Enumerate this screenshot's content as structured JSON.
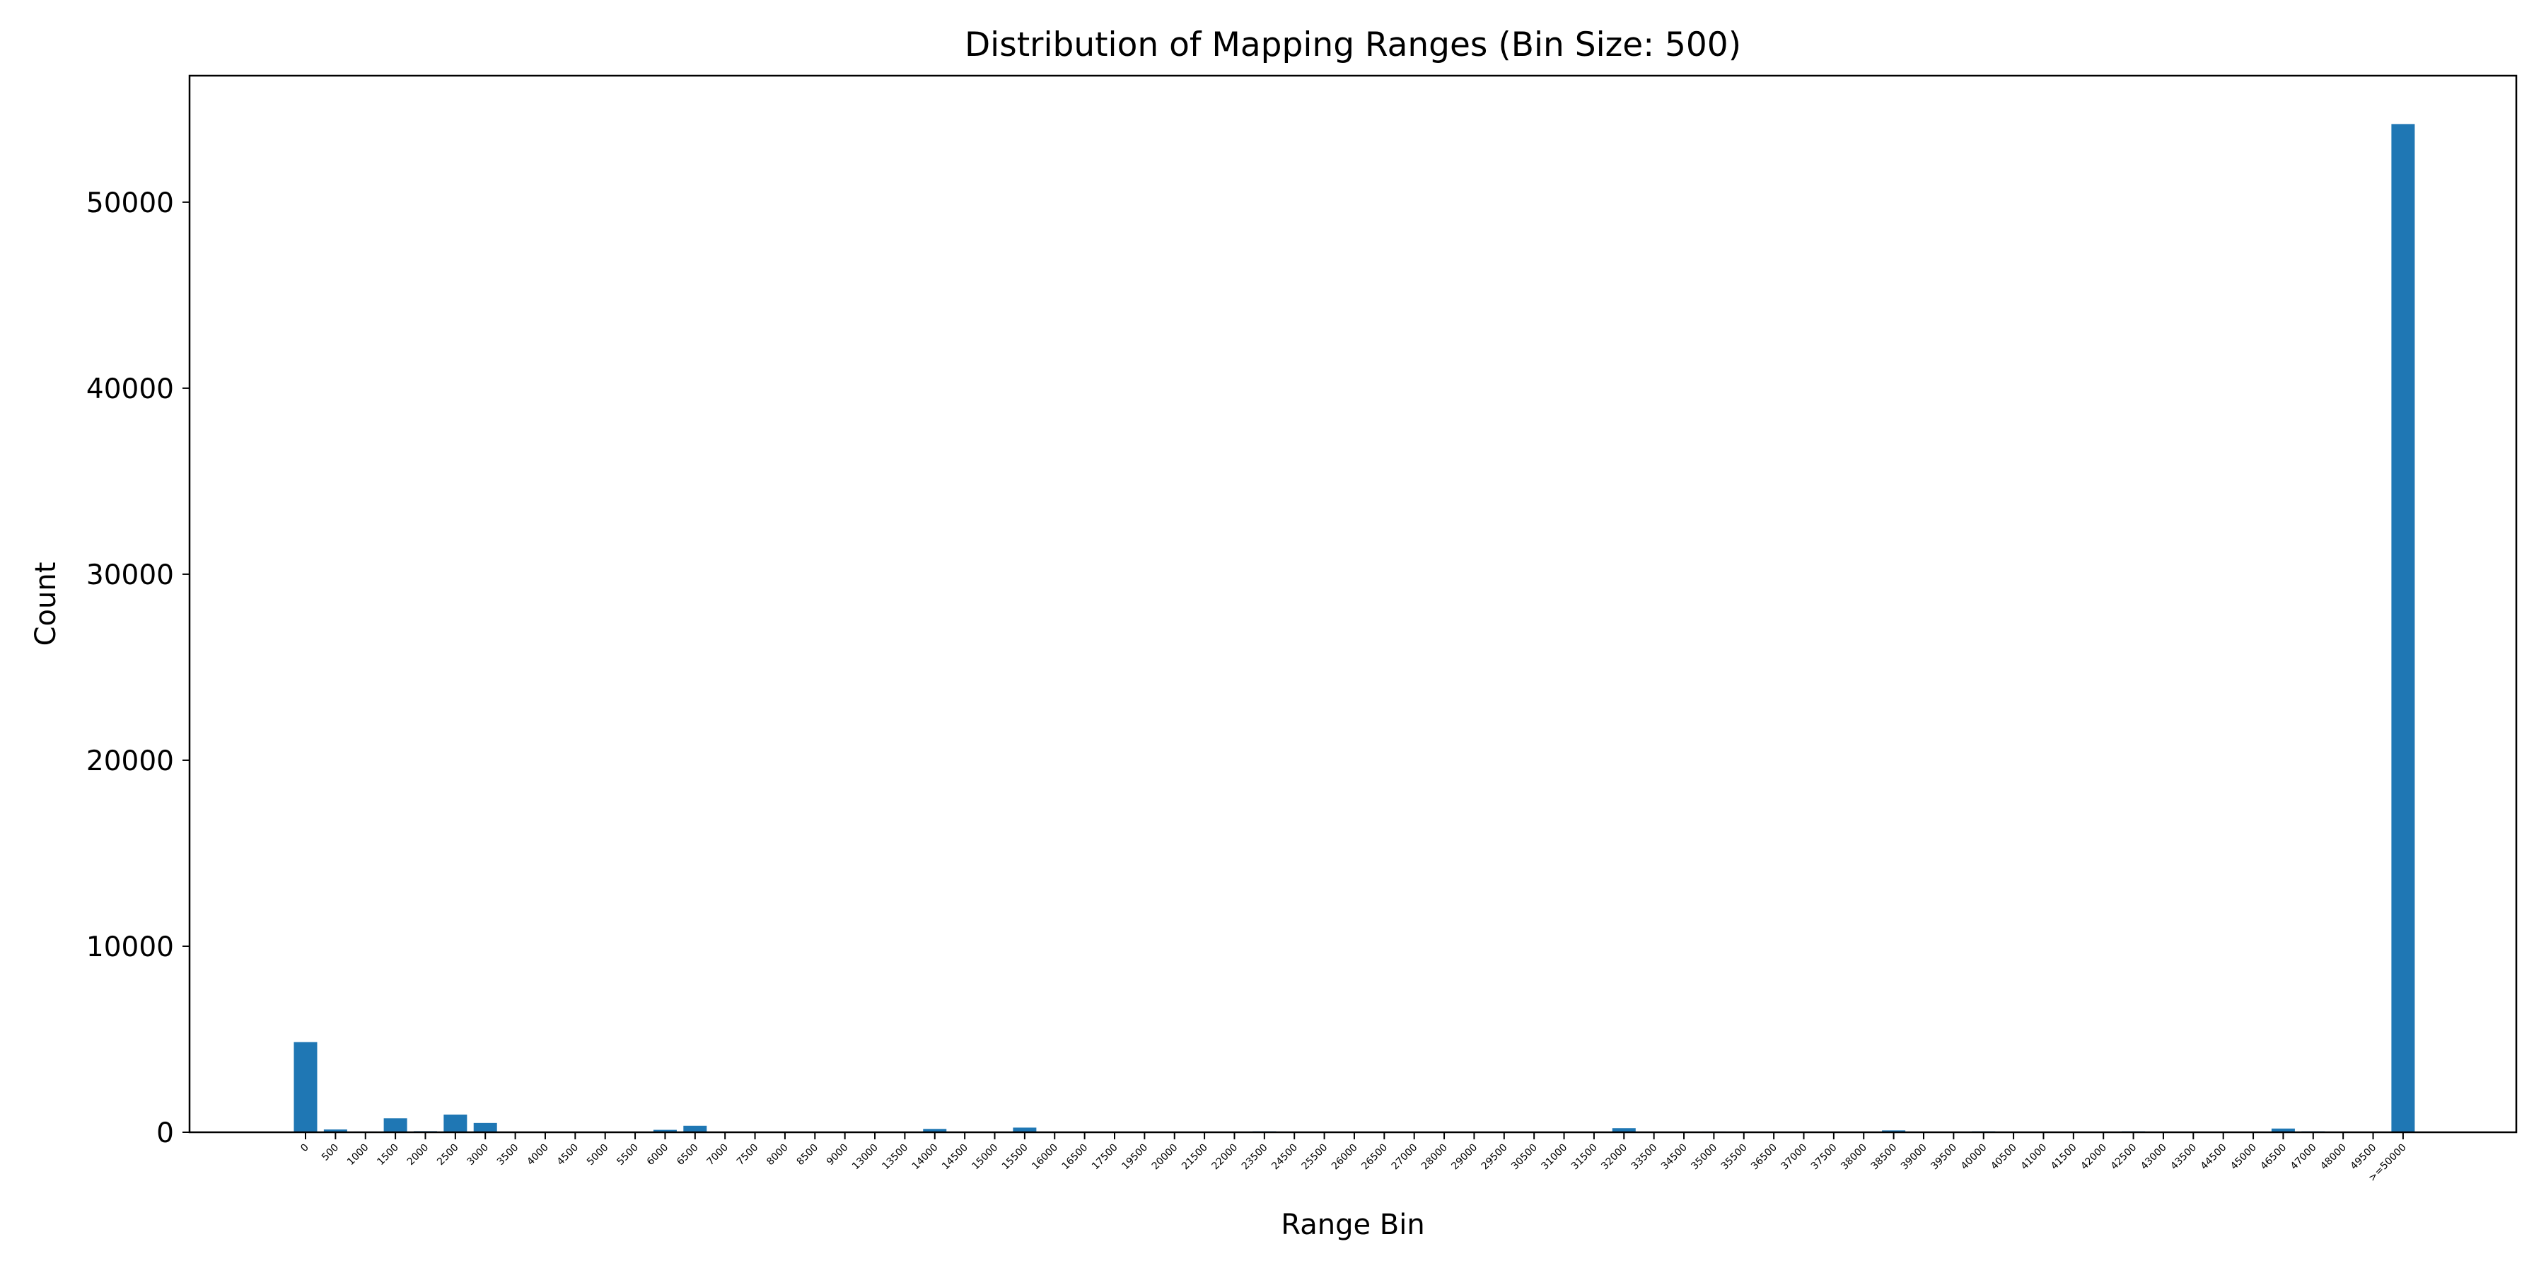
{
  "chart_data": {
    "type": "bar",
    "title": "Distribution of Mapping Ranges (Bin Size: 500)",
    "xlabel": "Range Bin",
    "ylabel": "Count",
    "ylim": [
      0,
      56800
    ],
    "yticks": [
      0,
      10000,
      20000,
      30000,
      40000,
      50000
    ],
    "bar_color": "#1f77b4",
    "categories": [
      "0",
      "500",
      "1000",
      "1500",
      "2000",
      "2500",
      "3000",
      "3500",
      "4000",
      "4500",
      "5000",
      "5500",
      "6000",
      "6500",
      "7000",
      "7500",
      "8000",
      "8500",
      "9000",
      "13000",
      "13500",
      "14000",
      "14500",
      "15000",
      "15500",
      "16000",
      "16500",
      "17500",
      "19500",
      "20000",
      "21500",
      "22000",
      "23500",
      "24500",
      "25500",
      "26000",
      "26500",
      "27000",
      "28000",
      "29000",
      "29500",
      "30500",
      "31000",
      "31500",
      "32000",
      "33500",
      "34500",
      "35000",
      "35500",
      "36500",
      "37000",
      "37500",
      "38000",
      "38500",
      "39000",
      "39500",
      "40000",
      "40500",
      "41000",
      "41500",
      "42000",
      "42500",
      "43000",
      "43500",
      "44500",
      "45000",
      "46500",
      "47000",
      "48000",
      "49500",
      ">=50000"
    ],
    "values": [
      4850,
      150,
      40,
      750,
      60,
      950,
      500,
      20,
      10,
      10,
      10,
      10,
      130,
      350,
      20,
      10,
      10,
      10,
      10,
      10,
      10,
      180,
      10,
      10,
      250,
      10,
      10,
      10,
      10,
      10,
      10,
      10,
      50,
      10,
      10,
      10,
      10,
      10,
      10,
      10,
      10,
      10,
      10,
      10,
      220,
      30,
      20,
      40,
      10,
      10,
      10,
      10,
      10,
      100,
      10,
      10,
      50,
      10,
      10,
      10,
      10,
      50,
      10,
      10,
      10,
      10,
      200,
      50,
      10,
      20,
      54200
    ]
  }
}
